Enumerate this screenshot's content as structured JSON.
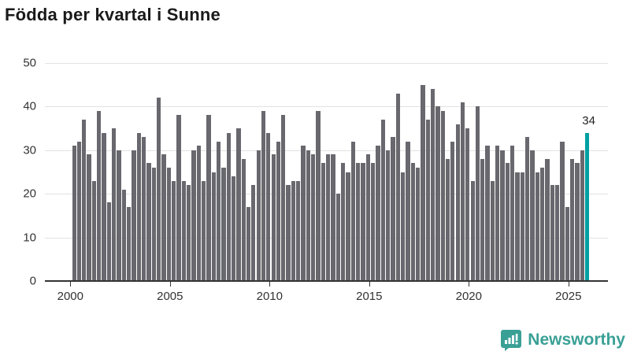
{
  "title": "Födda per kvartal i Sunne",
  "chart_data": {
    "type": "bar",
    "title": "Födda per kvartal i Sunne",
    "frequency": "quarterly",
    "start_period": "2000 Q1",
    "end_period": "2025 Q4",
    "values": [
      31,
      32,
      37,
      29,
      23,
      39,
      34,
      18,
      35,
      30,
      21,
      17,
      30,
      34,
      33,
      27,
      26,
      42,
      29,
      26,
      23,
      38,
      23,
      22,
      30,
      31,
      23,
      38,
      25,
      32,
      26,
      34,
      24,
      35,
      28,
      17,
      22,
      30,
      39,
      34,
      29,
      32,
      38,
      22,
      23,
      23,
      31,
      30,
      29,
      39,
      27,
      29,
      29,
      20,
      27,
      25,
      32,
      27,
      27,
      29,
      27,
      31,
      37,
      30,
      33,
      43,
      25,
      32,
      27,
      26,
      45,
      37,
      44,
      40,
      39,
      28,
      32,
      36,
      41,
      35,
      23,
      40,
      28,
      31,
      23,
      31,
      30,
      27,
      31,
      25,
      25,
      33,
      30,
      25,
      26,
      28,
      22,
      22,
      32,
      17,
      28,
      27,
      30,
      34
    ],
    "highlight": {
      "index": 103,
      "period": "2025 Q4",
      "value": 34,
      "label": "34"
    },
    "bar_color": "#68686e",
    "highlight_color": "#00a0a3",
    "ylim": [
      0,
      50
    ],
    "yticks": [
      0,
      10,
      20,
      30,
      40,
      50
    ],
    "xticks": [
      2000,
      2005,
      2010,
      2015,
      2020,
      2025
    ],
    "grid": true,
    "legend": "none",
    "xlabel": "",
    "ylabel": ""
  },
  "footer": {
    "brand": "Newsworthy",
    "brand_color": "#3aa096",
    "logo_icon": "bar-chart-speech-bubble-icon"
  }
}
